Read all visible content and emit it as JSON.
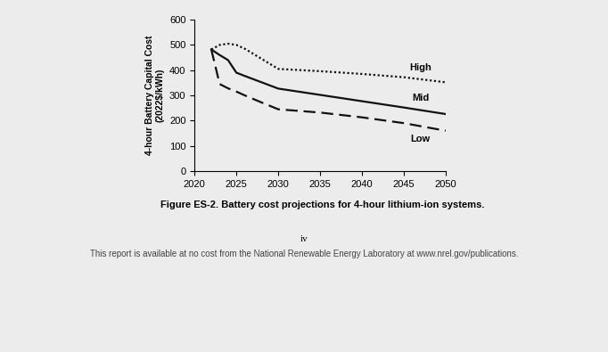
{
  "chart_data": {
    "type": "line",
    "y_label": "4-hour Battery Capital Cost\n(2022$/kWh)",
    "x": [
      2022,
      2023,
      2024,
      2025,
      2026,
      2028,
      2030,
      2035,
      2040,
      2045,
      2050
    ],
    "series": [
      {
        "name": "High",
        "color": "#111111",
        "line_style": "dotted",
        "values": [
          482,
          500,
          505,
          500,
          485,
          445,
          405,
          396,
          385,
          372,
          352
        ]
      },
      {
        "name": "Mid",
        "color": "#111111",
        "line_style": "solid",
        "values": [
          482,
          460,
          440,
          390,
          377,
          352,
          327,
          302,
          277,
          252,
          226
        ]
      },
      {
        "name": "Low",
        "color": "#111111",
        "line_style": "dashed",
        "values": [
          482,
          345,
          328,
          315,
          300,
          272,
          245,
          232,
          213,
          190,
          160
        ]
      }
    ],
    "xlim": [
      2020,
      2050
    ],
    "xticks": [
      2020,
      2025,
      2030,
      2035,
      2040,
      2045,
      2050
    ],
    "ylim": [
      0,
      600
    ],
    "yticks": [
      0,
      100,
      200,
      300,
      400,
      500,
      600
    ],
    "grid": false
  },
  "caption": "Figure ES-2. Battery cost projections for 4-hour lithium-ion systems.",
  "page_number": "iv",
  "footer": "This report is available at no cost from the National Renewable Energy Laboratory at www.nrel.gov/publications."
}
